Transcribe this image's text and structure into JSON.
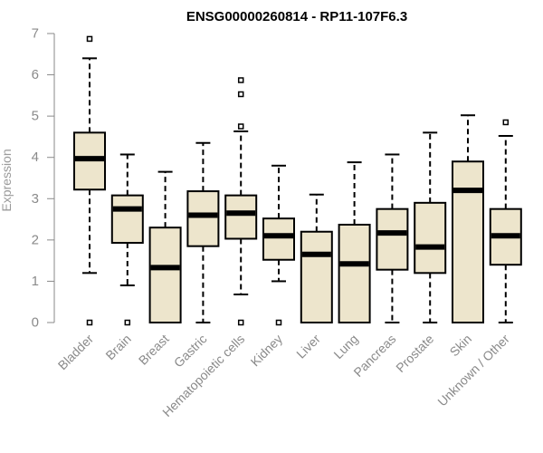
{
  "chart_data": {
    "type": "boxplot",
    "title": "ENSG00000260814 - RP11-107F6.3",
    "xlabel": "",
    "ylabel": "Expression",
    "ylim": [
      0,
      7
    ],
    "yticks": [
      0,
      1,
      2,
      3,
      4,
      5,
      6,
      7
    ],
    "grid": false,
    "colors": {
      "box_fill": "#ede5cc",
      "box_stroke": "#000000",
      "axis": "#8a8a8a"
    },
    "categories": [
      "Bladder",
      "Brain",
      "Breast",
      "Gastric",
      "Hematopoietic cells",
      "Kidney",
      "Liver",
      "Lung",
      "Pancreas",
      "Prostate",
      "Skin",
      "Unknown / Other"
    ],
    "boxes": [
      {
        "name": "Bladder",
        "min": 1.2,
        "q1": 3.22,
        "median": 3.97,
        "q3": 4.6,
        "max": 6.4,
        "outliers": [
          6.87,
          0.0
        ]
      },
      {
        "name": "Brain",
        "min": 0.9,
        "q1": 1.93,
        "median": 2.75,
        "q3": 3.08,
        "max": 4.07,
        "outliers": [
          0.0
        ]
      },
      {
        "name": "Breast",
        "min": 0.0,
        "q1": 0.0,
        "median": 1.33,
        "q3": 2.3,
        "max": 3.65,
        "outliers": []
      },
      {
        "name": "Gastric",
        "min": 0.0,
        "q1": 1.85,
        "median": 2.6,
        "q3": 3.18,
        "max": 4.35,
        "outliers": []
      },
      {
        "name": "Hematopoietic cells",
        "min": 0.68,
        "q1": 2.03,
        "median": 2.65,
        "q3": 3.08,
        "max": 4.63,
        "outliers": [
          5.87,
          5.53,
          4.75,
          0.0
        ]
      },
      {
        "name": "Kidney",
        "min": 1.0,
        "q1": 1.52,
        "median": 2.1,
        "q3": 2.52,
        "max": 3.8,
        "outliers": [
          0.0
        ]
      },
      {
        "name": "Liver",
        "min": 0.0,
        "q1": 0.0,
        "median": 1.65,
        "q3": 2.2,
        "max": 3.1,
        "outliers": []
      },
      {
        "name": "Lung",
        "min": 0.0,
        "q1": 0.0,
        "median": 1.42,
        "q3": 2.37,
        "max": 3.88,
        "outliers": []
      },
      {
        "name": "Pancreas",
        "min": 0.0,
        "q1": 1.28,
        "median": 2.17,
        "q3": 2.75,
        "max": 4.07,
        "outliers": []
      },
      {
        "name": "Prostate",
        "min": 0.0,
        "q1": 1.2,
        "median": 1.83,
        "q3": 2.9,
        "max": 4.6,
        "outliers": []
      },
      {
        "name": "Skin",
        "min": 0.0,
        "q1": 0.0,
        "median": 3.2,
        "q3": 3.9,
        "max": 5.02,
        "outliers": []
      },
      {
        "name": "Unknown / Other",
        "min": 0.0,
        "q1": 1.4,
        "median": 2.1,
        "q3": 2.75,
        "max": 4.52,
        "outliers": [
          4.85
        ]
      }
    ]
  }
}
